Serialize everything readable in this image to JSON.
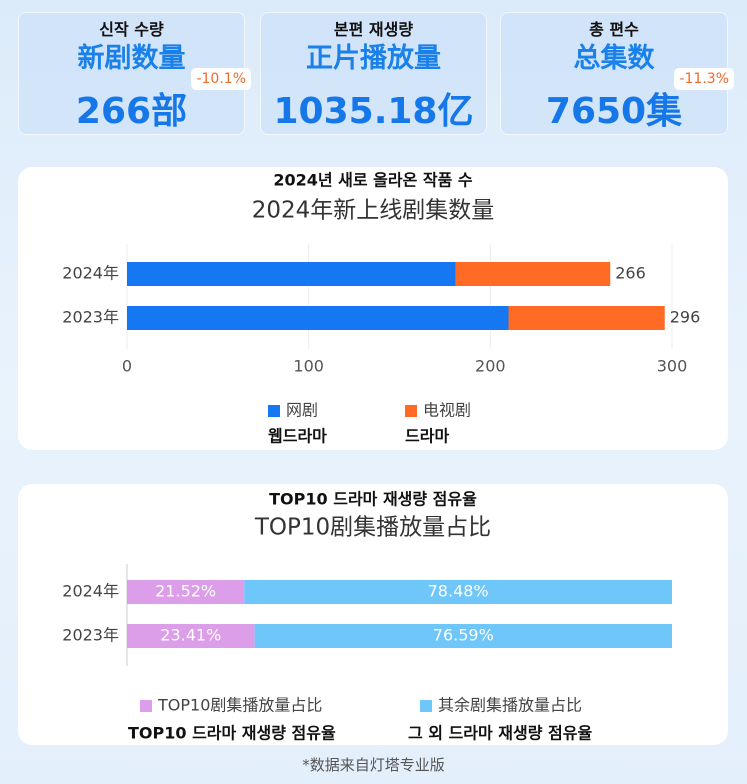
{
  "cards": [
    {
      "label_ko": "신작 수량",
      "title": "新剧数量",
      "value": "266部",
      "change": "-10.1%"
    },
    {
      "label_ko": "본편 재생량",
      "title": "正片播放量",
      "value": "1035.18亿"
    },
    {
      "label_ko": "총 편수",
      "title": "总集数",
      "value": "7650集",
      "change": "-11.3%"
    }
  ],
  "chart_data": [
    {
      "type": "stacked-bar-horizontal",
      "title_ko": "2024년 새로 올라온 작품 수",
      "title": "2024年新上线剧集数量",
      "categories": [
        "2024年",
        "2023年"
      ],
      "series": [
        {
          "name": "网剧",
          "translation": "웹드라마",
          "color": "#1677f2",
          "values": [
            181,
            210
          ]
        },
        {
          "name": "电视剧",
          "translation": "드라마",
          "color": "#ff6a24",
          "values": [
            85,
            86
          ]
        }
      ],
      "totals": [
        266,
        296
      ],
      "xlim": [
        0,
        300
      ],
      "xticks": [
        0,
        100,
        200,
        300
      ],
      "grid": true
    },
    {
      "type": "stacked-bar-horizontal",
      "title_ko": "TOP10 드라마 재생량 점유율",
      "title": "TOP10剧集播放量占比",
      "categories": [
        "2024年",
        "2023年"
      ],
      "series": [
        {
          "name": "TOP10剧集播放量占比",
          "translation": "TOP10 드라마 재생량 점유율",
          "color": "#dc9ee8",
          "values": [
            21.52,
            23.41
          ],
          "value_labels": [
            "21.52%",
            "23.41%"
          ]
        },
        {
          "name": "其余剧集播放量占比",
          "translation": "그 외 드라마 재생량 점유율",
          "color": "#6ec6f9",
          "values": [
            78.48,
            76.59
          ],
          "value_labels": [
            "78.48%",
            "76.59%"
          ]
        }
      ],
      "xlim": [
        0,
        100
      ]
    }
  ],
  "footnote": "*数据来自灯塔专业版"
}
